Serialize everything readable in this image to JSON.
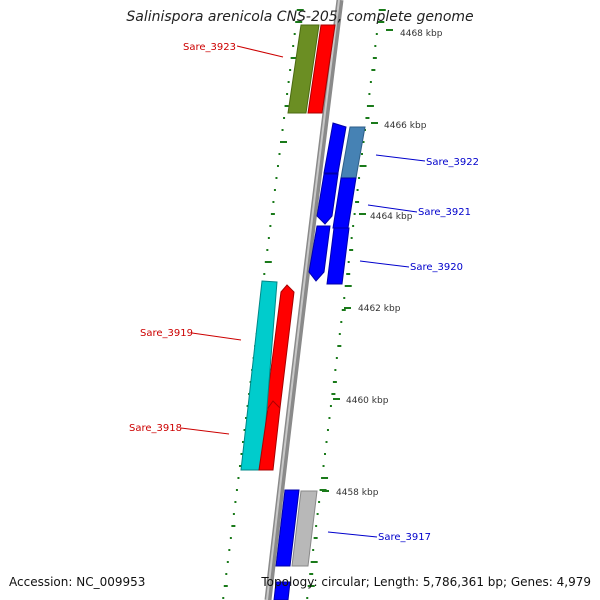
{
  "title": "Salinispora arenicola CNS-205, complete genome",
  "footer": {
    "accession": "Accession: NC_009953",
    "summary": "Topology: circular; Length: 5,786,361 bp; Genes: 4,979"
  },
  "ticks": [
    "4468 kbp",
    "4466 kbp",
    "4464 kbp",
    "4462 kbp",
    "4460 kbp",
    "4458 kbp"
  ],
  "colors": {
    "backbone": "#888888",
    "gc_ring": "#1a7a1a",
    "cds_forward": "#ff0000",
    "cds_reverse": "#0000ff",
    "label_forward": "#cc0000",
    "label_reverse": "#0000cc"
  },
  "genes": [
    {
      "label": "Sare_3923",
      "strand": "forward"
    },
    {
      "label": "Sare_3922",
      "strand": "reverse"
    },
    {
      "label": "Sare_3921",
      "strand": "reverse"
    },
    {
      "label": "Sare_3920",
      "strand": "reverse"
    },
    {
      "label": "Sare_3919",
      "strand": "forward"
    },
    {
      "label": "Sare_3918",
      "strand": "forward"
    },
    {
      "label": "Sare_3917",
      "strand": "reverse"
    }
  ]
}
